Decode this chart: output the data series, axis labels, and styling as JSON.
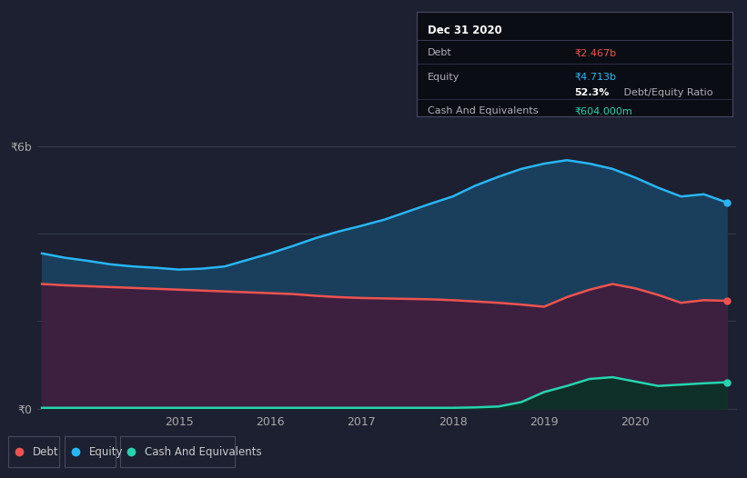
{
  "background_color": "#1c2030",
  "grid_color": "#353a50",
  "years": [
    2013.5,
    2013.75,
    2014.0,
    2014.25,
    2014.5,
    2014.75,
    2015.0,
    2015.25,
    2015.5,
    2015.75,
    2016.0,
    2016.25,
    2016.5,
    2016.75,
    2017.0,
    2017.25,
    2017.5,
    2017.75,
    2018.0,
    2018.25,
    2018.5,
    2018.75,
    2019.0,
    2019.25,
    2019.5,
    2019.75,
    2020.0,
    2020.25,
    2020.5,
    2020.75,
    2021.0
  ],
  "equity": [
    3.55,
    3.45,
    3.38,
    3.3,
    3.25,
    3.22,
    3.18,
    3.2,
    3.25,
    3.4,
    3.55,
    3.72,
    3.9,
    4.05,
    4.18,
    4.32,
    4.5,
    4.68,
    4.85,
    5.1,
    5.3,
    5.48,
    5.6,
    5.68,
    5.6,
    5.48,
    5.28,
    5.05,
    4.85,
    4.9,
    4.713
  ],
  "debt": [
    2.85,
    2.82,
    2.8,
    2.78,
    2.76,
    2.74,
    2.72,
    2.7,
    2.68,
    2.66,
    2.64,
    2.62,
    2.58,
    2.55,
    2.53,
    2.52,
    2.51,
    2.5,
    2.48,
    2.45,
    2.42,
    2.38,
    2.33,
    2.55,
    2.72,
    2.85,
    2.75,
    2.6,
    2.42,
    2.48,
    2.467
  ],
  "cash": [
    0.02,
    0.02,
    0.02,
    0.02,
    0.02,
    0.02,
    0.02,
    0.02,
    0.02,
    0.02,
    0.02,
    0.02,
    0.02,
    0.02,
    0.02,
    0.02,
    0.02,
    0.02,
    0.02,
    0.03,
    0.05,
    0.15,
    0.38,
    0.52,
    0.68,
    0.72,
    0.62,
    0.52,
    0.55,
    0.58,
    0.604
  ],
  "equity_color": "#29b6f6",
  "debt_color": "#ef5350",
  "cash_color": "#26d4b0",
  "equity_fill": "#1a3f5c",
  "debt_fill": "#3d2040",
  "cash_fill": "#0f3028",
  "ylim": [
    0,
    6.5
  ],
  "xlabel_years": [
    2015,
    2016,
    2017,
    2018,
    2019,
    2020
  ],
  "tooltip_title": "Dec 31 2020",
  "tooltip_debt_label": "Debt",
  "tooltip_debt_value": "₹2.467b",
  "tooltip_equity_label": "Equity",
  "tooltip_equity_value": "₹4.713b",
  "tooltip_ratio_bold": "52.3%",
  "tooltip_ratio_rest": " Debt/Equity Ratio",
  "tooltip_cash_label": "Cash And Equivalents",
  "tooltip_cash_value": "₹604.000m",
  "legend_labels": [
    "Debt",
    "Equity",
    "Cash And Equivalents"
  ]
}
